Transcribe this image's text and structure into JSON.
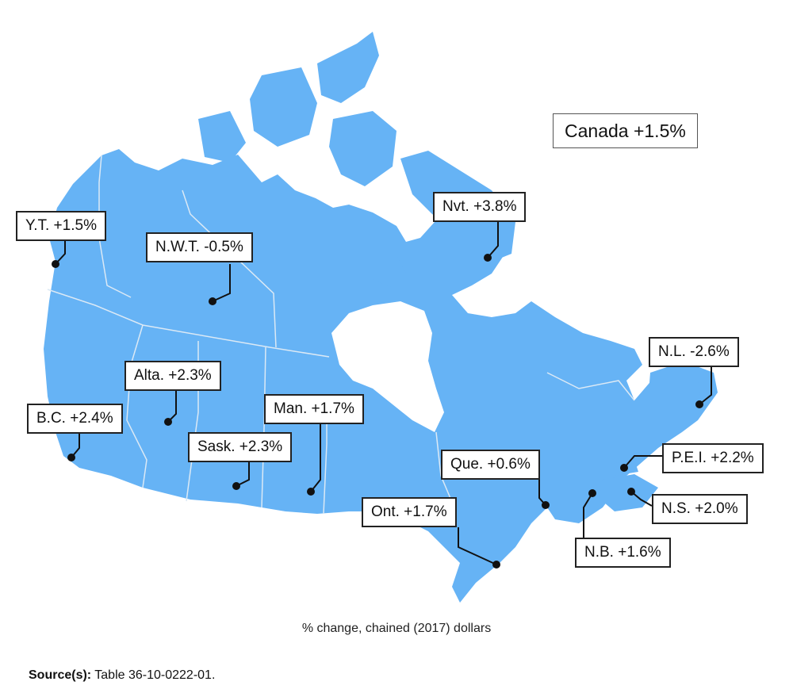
{
  "map": {
    "land_color": "#66b3f5",
    "border_color": "#dbe9f5",
    "leader_color": "#111111"
  },
  "national": {
    "label": "Canada +1.5%"
  },
  "regions": [
    {
      "id": "yt",
      "label": "Y.T. +1.5%",
      "name": "Yukon"
    },
    {
      "id": "nwt",
      "label": "N.W.T. -0.5%",
      "name": "Northwest Territories"
    },
    {
      "id": "nvt",
      "label": "Nvt. +3.8%",
      "name": "Nunavut"
    },
    {
      "id": "bc",
      "label": "B.C. +2.4%",
      "name": "British Columbia"
    },
    {
      "id": "alta",
      "label": "Alta. +2.3%",
      "name": "Alberta"
    },
    {
      "id": "sask",
      "label": "Sask. +2.3%",
      "name": "Saskatchewan"
    },
    {
      "id": "man",
      "label": "Man. +1.7%",
      "name": "Manitoba"
    },
    {
      "id": "ont",
      "label": "Ont. +1.7%",
      "name": "Ontario"
    },
    {
      "id": "que",
      "label": "Que. +0.6%",
      "name": "Quebec"
    },
    {
      "id": "nl",
      "label": "N.L. -2.6%",
      "name": "Newfoundland and Labrador"
    },
    {
      "id": "pei",
      "label": "P.E.I. +2.2%",
      "name": "Prince Edward Island"
    },
    {
      "id": "ns",
      "label": "N.S. +2.0%",
      "name": "Nova Scotia"
    },
    {
      "id": "nb",
      "label": "N.B. +1.6%",
      "name": "New Brunswick"
    }
  ],
  "caption": "% change, chained (2017) dollars",
  "source": {
    "prefix": "Source(s):",
    "text": " Table 36-10-0222-01."
  }
}
